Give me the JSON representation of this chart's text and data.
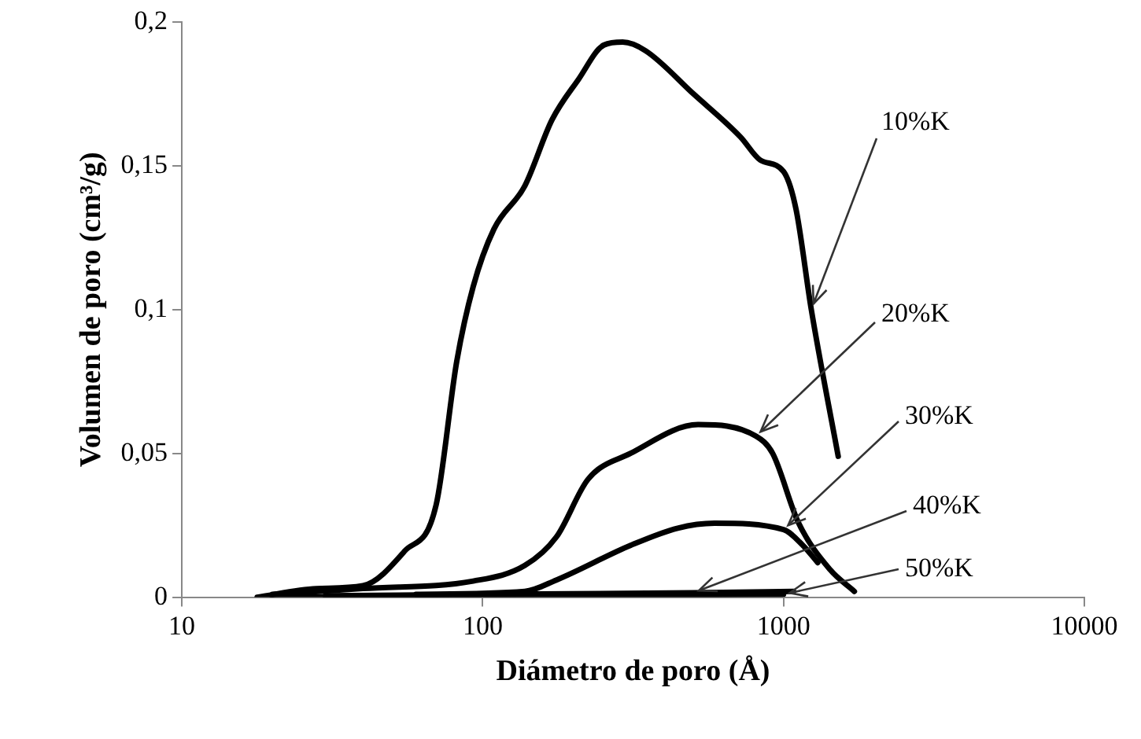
{
  "chart_data": {
    "type": "line",
    "xlabel": "Diámetro de poro (Å)",
    "ylabel": "Volumen de poro (cm³/g)",
    "log": "x",
    "grid": false,
    "legend": false,
    "xlim": [
      10,
      10000
    ],
    "xticks": [
      10,
      100,
      1000,
      10000
    ],
    "ylim": [
      0,
      0.2
    ],
    "yticks": [
      0,
      {
        "value": 0.05,
        "label": "0,05"
      },
      {
        "value": 0.1,
        "label": "0,1"
      },
      {
        "value": 0.15,
        "label": "0,15"
      },
      {
        "value": 0.2,
        "label": "0,2"
      }
    ],
    "series": [
      {
        "name": "10%K",
        "color": "#000000",
        "x": [
          17.8,
          28,
          40,
          55,
          70,
          82,
          93,
          109,
          138,
          170,
          208,
          253,
          292,
          348,
          502,
          720,
          837,
          1000,
          1100,
          1237,
          1520
        ],
        "values": [
          0,
          0.003,
          0.004,
          0.016,
          0.032,
          0.082,
          0.108,
          0.128,
          0.143,
          0.166,
          0.18,
          0.192,
          0.193,
          0.19,
          0.175,
          0.16,
          0.152,
          0.148,
          0.135,
          0.1,
          0.049
        ]
      },
      {
        "name": "20%K",
        "color": "#000000",
        "x": [
          20,
          40,
          93,
          138,
          176,
          224,
          310,
          520,
          810,
          920,
          1120,
          1430,
          1720
        ],
        "values": [
          0.001,
          0.003,
          0.0056,
          0.011,
          0.021,
          0.041,
          0.05,
          0.06,
          0.056,
          0.05,
          0.026,
          0.0095,
          0.002
        ]
      },
      {
        "name": "30%K",
        "color": "#000000",
        "x": [
          60,
          138,
          176,
          310,
          445,
          590,
          1000,
          1160,
          1300
        ],
        "values": [
          0.001,
          0.002,
          0.006,
          0.018,
          0.024,
          0.0257,
          0.0235,
          0.018,
          0.012
        ]
      },
      {
        "name": "40%K",
        "color": "#000000",
        "x": [
          30,
          100,
          500,
          1080
        ],
        "values": [
          0.0005,
          0.001,
          0.0015,
          0.002
        ]
      },
      {
        "name": "50%K",
        "color": "#000000",
        "x": [
          20,
          100,
          500,
          1000
        ],
        "values": [
          0,
          0.0005,
          0.0008,
          0.001
        ]
      }
    ]
  }
}
